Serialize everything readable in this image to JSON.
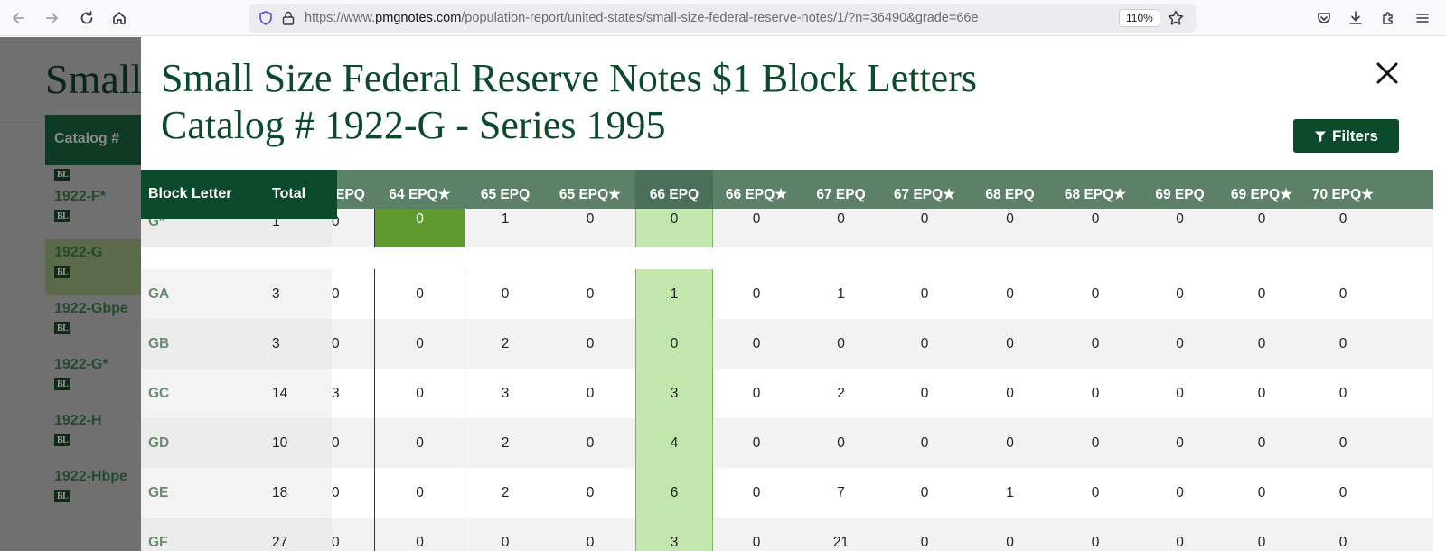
{
  "browser": {
    "url_prefix": "https://www.",
    "url_domain": "pmgnotes.com",
    "url_path": "/population-report/united-states/small-size-federal-reserve-notes/1/?n=36490&grade=66e",
    "zoom": "110%"
  },
  "background_page": {
    "heading": "Small",
    "column_header": "Catalog #",
    "badge": "BL",
    "catalog_items": [
      "1922-F*",
      "1922-G",
      "1922-Gbpe",
      "1922-G*",
      "1922-H",
      "1922-Hbpe"
    ]
  },
  "modal": {
    "title_line1": "Small Size Federal Reserve Notes $1 Block Letters",
    "title_line2": "Catalog # 1922-G - Series 1995",
    "filters_label": "Filters",
    "table": {
      "frozen_headers": {
        "block_letter": "Block Letter",
        "total": "Total"
      },
      "partial_header": "EPQ",
      "grade_headers": [
        "64 EPQ★",
        "65 EPQ",
        "65 EPQ★",
        "66 EPQ",
        "66 EPQ★",
        "67 EPQ",
        "67 EPQ★",
        "68 EPQ",
        "68 EPQ★",
        "69 EPQ",
        "69 EPQ★",
        "70 EPQ★"
      ],
      "rows": [
        {
          "block": "G*",
          "total": "1",
          "partial": "0",
          "values": [
            "0",
            "1",
            "0",
            "0",
            "0",
            "0",
            "0",
            "0",
            "0",
            "0",
            "0",
            "0"
          ]
        },
        {
          "block": "GA",
          "total": "3",
          "partial": "0",
          "values": [
            "0",
            "0",
            "0",
            "1",
            "0",
            "1",
            "0",
            "0",
            "0",
            "0",
            "0",
            "0"
          ]
        },
        {
          "block": "GB",
          "total": "3",
          "partial": "0",
          "values": [
            "0",
            "2",
            "0",
            "0",
            "0",
            "0",
            "0",
            "0",
            "0",
            "0",
            "0",
            "0"
          ]
        },
        {
          "block": "GC",
          "total": "14",
          "partial": "3",
          "values": [
            "0",
            "3",
            "0",
            "3",
            "0",
            "2",
            "0",
            "0",
            "0",
            "0",
            "0",
            "0"
          ]
        },
        {
          "block": "GD",
          "total": "10",
          "partial": "0",
          "values": [
            "0",
            "2",
            "0",
            "4",
            "0",
            "0",
            "0",
            "0",
            "0",
            "0",
            "0",
            "0"
          ]
        },
        {
          "block": "GE",
          "total": "18",
          "partial": "0",
          "values": [
            "0",
            "2",
            "0",
            "6",
            "0",
            "7",
            "0",
            "1",
            "0",
            "0",
            "0",
            "0"
          ]
        },
        {
          "block": "GF",
          "total": "27",
          "partial": "0",
          "values": [
            "0",
            "0",
            "0",
            "3",
            "0",
            "21",
            "0",
            "0",
            "0",
            "0",
            "0",
            "0"
          ]
        }
      ]
    }
  },
  "colors": {
    "brand_green": "#0b4a2a",
    "header_green": "#5d8068",
    "selected_column": "#c3e6ad",
    "highlight_cell": "#5e9a2e"
  }
}
